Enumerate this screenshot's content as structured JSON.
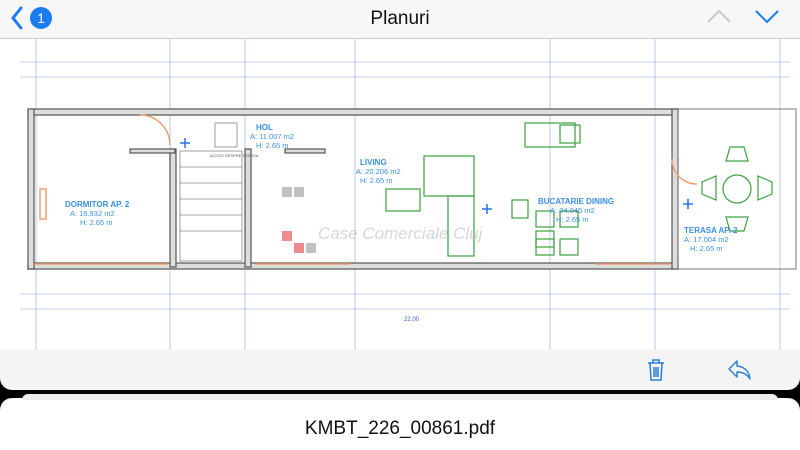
{
  "nav": {
    "title": "Planuri",
    "back_count": "1",
    "back_icon": "chevron-left-icon",
    "prev_icon": "chevron-up-icon",
    "next_icon": "chevron-down-icon"
  },
  "plan": {
    "overall_dimension": "22.00",
    "rooms": [
      {
        "name": "DORMITOR AP. 2",
        "area": "A: 16.932 m2",
        "height": "H: 2.65 m"
      },
      {
        "name": "HOL",
        "area": "A: 11.007 m2",
        "height": "H: 2.65 m"
      },
      {
        "name": "LIVING",
        "area": "A: 20.206 m2",
        "height": "H: 2.65 m"
      },
      {
        "name": "BUCATARIE DINING",
        "area": "A: 24.045 m2",
        "height": "H: 2.65 m"
      },
      {
        "name": "TERASA AP. 2",
        "area": "A: 17.004 m2",
        "height": "H: 2.65 m"
      }
    ],
    "stair_label": "ACCES DESPRE TERASA",
    "watermark": "Case Comerciale Cluj"
  },
  "toolbar": {
    "delete_icon": "trash-icon",
    "reply_icon": "reply-icon"
  },
  "file": {
    "name": "KMBT_226_00861.pdf"
  },
  "colors": {
    "accent": "#1a7cf0",
    "wall": "#555555",
    "dimension": "#3b4fd0",
    "furniture": "#3aa040",
    "door": "#f0a070"
  }
}
